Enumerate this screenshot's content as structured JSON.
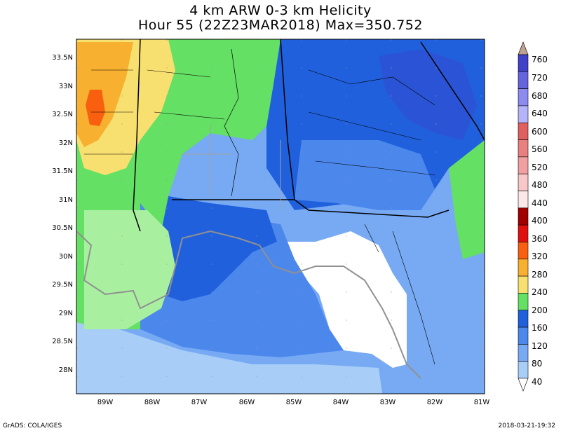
{
  "titles": {
    "line1": "4 km ARW 0-3 km Helicity",
    "line2": "Hour 55 (22Z23MAR2018) Max=350.752"
  },
  "axes": {
    "lat_labels": [
      "33.5N",
      "33N",
      "32.5N",
      "32N",
      "31.5N",
      "31N",
      "30.5N",
      "30N",
      "29.5N",
      "29N",
      "28.5N",
      "28N"
    ],
    "lon_labels": [
      "89W",
      "88W",
      "87W",
      "86W",
      "85W",
      "84W",
      "83W",
      "82W",
      "81W"
    ]
  },
  "colorbar": {
    "labels": [
      "760",
      "720",
      "680",
      "640",
      "600",
      "560",
      "520",
      "480",
      "440",
      "400",
      "360",
      "320",
      "280",
      "240",
      "200",
      "160",
      "120",
      "80",
      "40"
    ],
    "colors": [
      "#c0a090",
      "#4040c8",
      "#6464dc",
      "#8c8cf0",
      "#b4b4fa",
      "#e06060",
      "#e88080",
      "#f0a0a0",
      "#f8c8c8",
      "#fce8e8",
      "#a00000",
      "#e01010",
      "#f86010",
      "#f8b030",
      "#f8e070",
      "#64e064",
      "#2060dc",
      "#4c88ec",
      "#78aaf4",
      "#a8cef8",
      "#ffffff"
    ]
  },
  "footer": {
    "left": "GrADS: COLA/IGES",
    "right": "2018-03-21-19:32"
  }
}
